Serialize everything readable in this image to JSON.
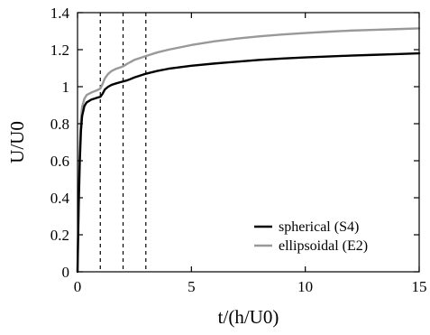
{
  "chart_data": {
    "type": "line",
    "xlabel": "t/(h/U0)",
    "ylabel": "U/U0",
    "xlim": [
      0,
      15
    ],
    "ylim": [
      0,
      1.4
    ],
    "xticks": [
      0,
      5,
      10,
      15
    ],
    "xtick_labels": [
      "0",
      "5",
      "10",
      "15"
    ],
    "yticks": [
      0,
      0.2,
      0.4,
      0.6,
      0.8,
      1,
      1.2,
      1.4
    ],
    "ytick_labels": [
      "0",
      "0.2",
      "0.4",
      "0.6",
      "0.8",
      "1",
      "1.2",
      "1.4"
    ],
    "grid": false,
    "legend_position": "bottom-right",
    "vertical_reference_lines": [
      1,
      2,
      3
    ],
    "series": [
      {
        "name": "spherical (S4)",
        "color": "#000000",
        "x": [
          0,
          0.05,
          0.1,
          0.15,
          0.2,
          0.3,
          0.4,
          0.6,
          0.8,
          0.9,
          1.0,
          1.1,
          1.2,
          1.35,
          1.5,
          1.7,
          1.9,
          2.0,
          2.2,
          2.5,
          3.0,
          3.5,
          4.0,
          5.0,
          6.0,
          7.0,
          8.0,
          9.0,
          10.0,
          11.0,
          12.0,
          13.0,
          14.0,
          15.0
        ],
        "y": [
          0,
          0.35,
          0.6,
          0.76,
          0.84,
          0.895,
          0.915,
          0.93,
          0.938,
          0.942,
          0.945,
          0.962,
          0.985,
          1.0,
          1.01,
          1.018,
          1.025,
          1.028,
          1.035,
          1.05,
          1.07,
          1.085,
          1.097,
          1.113,
          1.125,
          1.135,
          1.145,
          1.152,
          1.158,
          1.163,
          1.168,
          1.172,
          1.176,
          1.18
        ]
      },
      {
        "name": "ellipsoidal (E2)",
        "color": "#999999",
        "x": [
          0,
          0.05,
          0.1,
          0.15,
          0.2,
          0.3,
          0.4,
          0.6,
          0.8,
          0.9,
          1.0,
          1.1,
          1.2,
          1.35,
          1.5,
          1.7,
          1.9,
          2.0,
          2.2,
          2.5,
          3.0,
          3.5,
          4.0,
          5.0,
          6.0,
          7.0,
          8.0,
          9.0,
          10.0,
          11.0,
          12.0,
          13.0,
          14.0,
          15.0
        ],
        "y": [
          0,
          0.4,
          0.68,
          0.82,
          0.89,
          0.935,
          0.955,
          0.968,
          0.978,
          0.983,
          0.99,
          1.015,
          1.045,
          1.07,
          1.085,
          1.097,
          1.105,
          1.11,
          1.125,
          1.145,
          1.165,
          1.185,
          1.2,
          1.225,
          1.245,
          1.26,
          1.272,
          1.282,
          1.29,
          1.297,
          1.303,
          1.307,
          1.311,
          1.315
        ]
      }
    ]
  }
}
